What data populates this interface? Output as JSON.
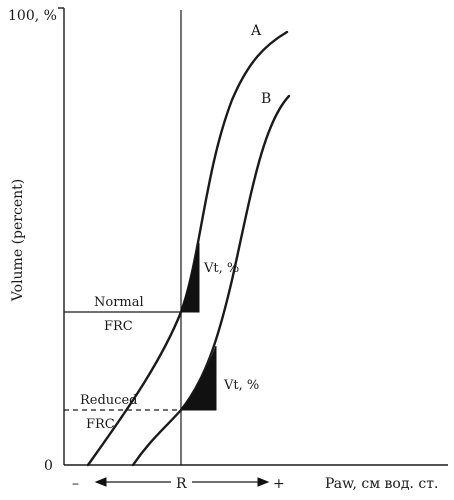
{
  "diagram": {
    "y_axis_top_label": "100, %",
    "y_axis_zero_label": "0",
    "y_axis_title": "Volume (percent)",
    "x_axis_title": "Paw, см вод. ст.",
    "x_minus_label": "–",
    "x_center_label": "R",
    "x_plus_label": "+",
    "curve_a_label": "A",
    "curve_b_label": "B",
    "normal_label": "Normal",
    "normal_frc_label": "FRC",
    "reduced_label": "Reduced",
    "reduced_frc_label": "FRC",
    "vt_upper_label": "Vt, %",
    "vt_lower_label": "Vt, %"
  }
}
